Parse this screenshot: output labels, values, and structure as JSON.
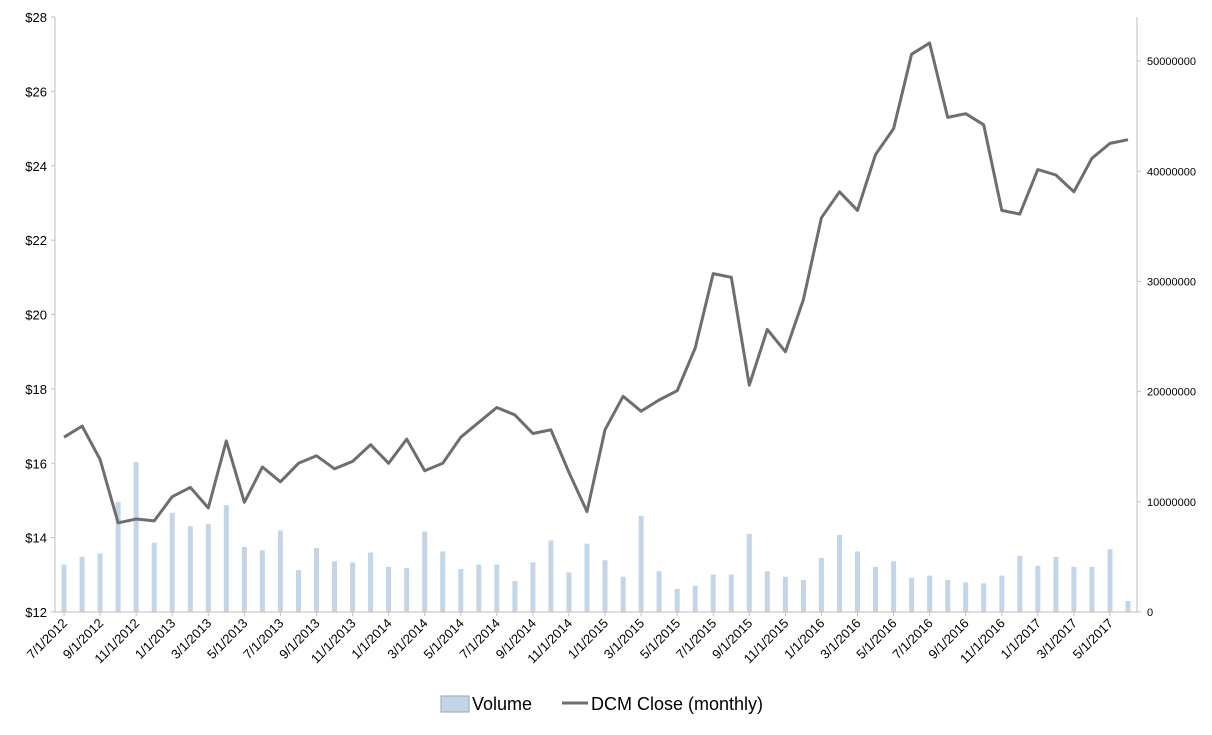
{
  "chart_data": {
    "type": "bar+line",
    "title": "",
    "x": [
      "7/1/2012",
      "8/1/2012",
      "9/1/2012",
      "10/1/2012",
      "11/1/2012",
      "12/1/2012",
      "1/1/2013",
      "2/1/2013",
      "3/1/2013",
      "4/1/2013",
      "5/1/2013",
      "6/1/2013",
      "7/1/2013",
      "8/1/2013",
      "9/1/2013",
      "10/1/2013",
      "11/1/2013",
      "12/1/2013",
      "1/1/2014",
      "2/1/2014",
      "3/1/2014",
      "4/1/2014",
      "5/1/2014",
      "6/1/2014",
      "7/1/2014",
      "8/1/2014",
      "9/1/2014",
      "10/1/2014",
      "11/1/2014",
      "12/1/2014",
      "1/1/2015",
      "2/1/2015",
      "3/1/2015",
      "4/1/2015",
      "5/1/2015",
      "6/1/2015",
      "7/1/2015",
      "8/1/2015",
      "9/1/2015",
      "10/1/2015",
      "11/1/2015",
      "12/1/2015",
      "1/1/2016",
      "2/1/2016",
      "3/1/2016",
      "4/1/2016",
      "5/1/2016",
      "6/1/2016",
      "7/1/2016",
      "8/1/2016",
      "9/1/2016",
      "10/1/2016",
      "11/1/2016",
      "12/1/2016",
      "1/1/2017",
      "2/1/2017",
      "3/1/2017",
      "4/1/2017",
      "5/1/2017",
      "6/1/2017"
    ],
    "x_tick_labels": [
      "7/1/2012",
      "9/1/2012",
      "11/1/2012",
      "1/1/2013",
      "3/1/2013",
      "5/1/2013",
      "7/1/2013",
      "9/1/2013",
      "11/1/2013",
      "1/1/2014",
      "3/1/2014",
      "5/1/2014",
      "7/1/2014",
      "9/1/2014",
      "11/1/2014",
      "1/1/2015",
      "3/1/2015",
      "5/1/2015",
      "7/1/2015",
      "9/1/2015",
      "11/1/2015",
      "1/1/2016",
      "3/1/2016",
      "5/1/2016",
      "7/1/2016",
      "9/1/2016",
      "11/1/2016",
      "1/1/2017",
      "3/1/2017",
      "5/1/2017"
    ],
    "series": [
      {
        "name": "Volume",
        "type": "bar",
        "axis": "right",
        "color": "#c5d5e8",
        "values": [
          4300000,
          5000000,
          5300000,
          10000000,
          13600000,
          6300000,
          9000000,
          7800000,
          8000000,
          9700000,
          5900000,
          5600000,
          7400000,
          3800000,
          5800000,
          4600000,
          4500000,
          5400000,
          4100000,
          4000000,
          7300000,
          5500000,
          3900000,
          4300000,
          4300000,
          2800000,
          4500000,
          6500000,
          3600000,
          6200000,
          4700000,
          3200000,
          8700000,
          3700000,
          2100000,
          2400000,
          3400000,
          3400000,
          7100000,
          3700000,
          3200000,
          2900000,
          4900000,
          7000000,
          5500000,
          4100000,
          4600000,
          3100000,
          3300000,
          2900000,
          2700000,
          2600000,
          3300000,
          5100000,
          4200000,
          5000000,
          4100000,
          4100000,
          5700000,
          1000000
        ]
      },
      {
        "name": "DCM Close (monthly)",
        "type": "line",
        "axis": "left",
        "color": "#6e6e6e",
        "values": [
          16.7,
          17.0,
          16.1,
          14.4,
          14.5,
          14.45,
          15.1,
          15.35,
          14.8,
          16.6,
          14.95,
          15.9,
          15.5,
          16.0,
          16.2,
          15.85,
          16.05,
          16.5,
          16.0,
          16.65,
          15.8,
          16.0,
          16.7,
          17.1,
          17.5,
          17.3,
          16.8,
          16.9,
          15.75,
          14.7,
          16.9,
          17.8,
          17.4,
          17.7,
          17.95,
          19.1,
          21.1,
          21.0,
          18.1,
          19.6,
          19.0,
          20.4,
          22.6,
          23.3,
          22.8,
          24.3,
          25.0,
          27.0,
          27.3,
          25.3,
          25.4,
          25.1,
          22.8,
          22.7,
          23.9,
          23.75,
          23.3,
          24.2,
          24.6,
          24.7
        ]
      }
    ],
    "y_left": {
      "min": 12,
      "max": 28,
      "ticks": [
        "$12",
        "$14",
        "$16",
        "$18",
        "$20",
        "$22",
        "$24",
        "$26",
        "$28"
      ]
    },
    "y_right": {
      "min": 0,
      "max": 54000000,
      "ticks": [
        "0",
        "10000000",
        "20000000",
        "30000000",
        "40000000",
        "50000000"
      ]
    },
    "legend": {
      "position": "bottom",
      "entries": [
        "Volume",
        "DCM Close (monthly)"
      ]
    },
    "grid": false
  }
}
